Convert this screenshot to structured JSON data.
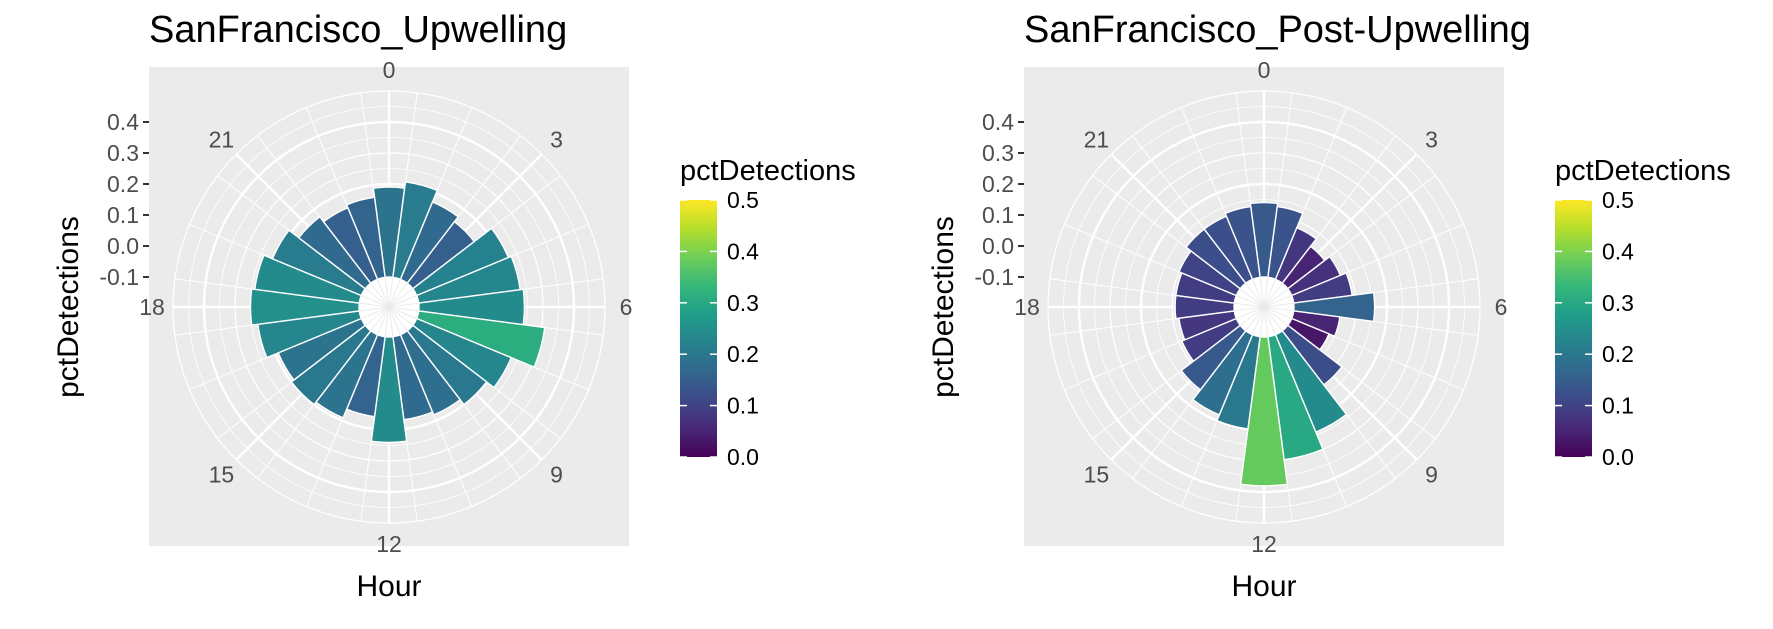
{
  "chart_data": [
    {
      "type": "bar",
      "coord": "polar",
      "title": "SanFrancisco_Upwelling",
      "xlabel": "Hour",
      "ylabel": "pctDetections",
      "ylim": [
        -0.1,
        0.5
      ],
      "y_ticks": [
        "0.4",
        "0.3",
        "0.2",
        "0.1",
        "0.0",
        "-0.1"
      ],
      "hour_ticks": [
        "0",
        "3",
        "6",
        "9",
        "12",
        "15",
        "18",
        "21"
      ],
      "grid": true,
      "legend_title": "pctDetections",
      "legend_ticks": [
        "0.5",
        "0.4",
        "0.3",
        "0.2",
        "0.1",
        "0.0"
      ],
      "legend_placement": "right",
      "colorscale": [
        "#440154",
        "#482878",
        "#3e4989",
        "#31688e",
        "#26828e",
        "#1f9e89",
        "#35b779",
        "#6ece58",
        "#b5de2b",
        "#fde725"
      ],
      "x": [
        0,
        1,
        2,
        3,
        4,
        5,
        6,
        7,
        8,
        9,
        10,
        11,
        12,
        13,
        14,
        15,
        16,
        17,
        18,
        19,
        20,
        21,
        22,
        23
      ],
      "values": [
        0.19,
        0.21,
        0.17,
        0.15,
        0.22,
        0.23,
        0.24,
        0.31,
        0.23,
        0.2,
        0.18,
        0.17,
        0.24,
        0.16,
        0.19,
        0.2,
        0.19,
        0.23,
        0.25,
        0.24,
        0.21,
        0.17,
        0.15,
        0.16
      ]
    },
    {
      "type": "bar",
      "coord": "polar",
      "title": "SanFrancisco_Post-Upwelling",
      "xlabel": "Hour",
      "ylabel": "pctDetections",
      "ylim": [
        -0.1,
        0.5
      ],
      "y_ticks": [
        "0.4",
        "0.3",
        "0.2",
        "0.1",
        "0.0",
        "-0.1"
      ],
      "hour_ticks": [
        "0",
        "3",
        "6",
        "9",
        "12",
        "15",
        "18",
        "21"
      ],
      "grid": true,
      "legend_title": "pctDetections",
      "legend_ticks": [
        "0.5",
        "0.4",
        "0.3",
        "0.2",
        "0.1",
        "0.0"
      ],
      "legend_placement": "right",
      "colorscale": [
        "#440154",
        "#482878",
        "#3e4989",
        "#31688e",
        "#26828e",
        "#1f9e89",
        "#35b779",
        "#6ece58",
        "#b5de2b",
        "#fde725"
      ],
      "x": [
        0,
        1,
        2,
        3,
        4,
        5,
        6,
        7,
        8,
        9,
        10,
        11,
        12,
        13,
        14,
        15,
        16,
        17,
        18,
        19,
        20,
        21,
        22,
        23
      ],
      "values": [
        0.14,
        0.13,
        0.08,
        0.05,
        0.07,
        0.09,
        0.16,
        0.05,
        0.03,
        0.12,
        0.24,
        0.3,
        0.38,
        0.2,
        0.18,
        0.14,
        0.09,
        0.08,
        0.09,
        0.09,
        0.1,
        0.12,
        0.12,
        0.13
      ]
    }
  ]
}
